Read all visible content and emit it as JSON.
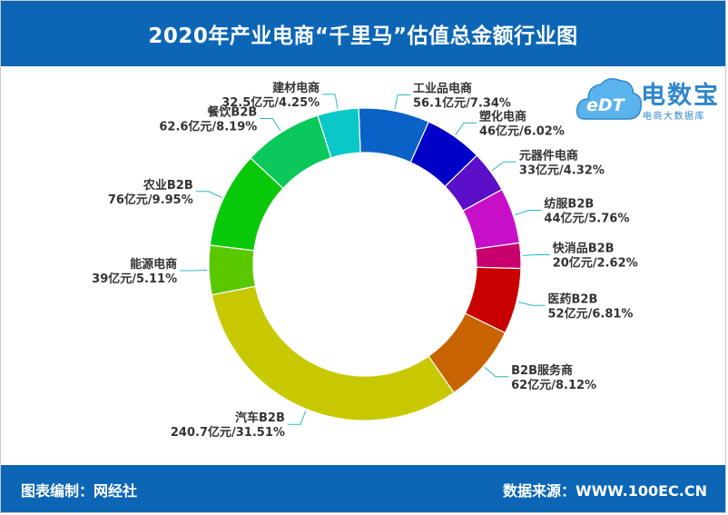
{
  "header": {
    "title": "2020年产业电商“千里马”估值总金额行业图"
  },
  "footer": {
    "credit": "图表编制：网经社",
    "source": "数据来源：WWW.100EC.CN"
  },
  "logo": {
    "mark": "eDT",
    "brand": "电数宝",
    "subtitle": "电商大数据库",
    "icon": "cloud-icon"
  },
  "colors": {
    "header_bg": "#0c66b5",
    "leader_line": "#28b8c8",
    "label_text": "#333333"
  },
  "chart_data": {
    "type": "pie",
    "variant": "donut",
    "title": "2020年产业电商“千里马”估值总金额行业图",
    "unit": "亿元",
    "slices": [
      {
        "name": "工业品电商",
        "value": 56.1,
        "percent": 7.34,
        "label": "56.1亿元/7.34%",
        "color": "#0a62c6"
      },
      {
        "name": "塑化电商",
        "value": 46,
        "percent": 6.02,
        "label": "46亿元/6.02%",
        "color": "#0000c6"
      },
      {
        "name": "元器件电商",
        "value": 33,
        "percent": 4.32,
        "label": "33亿元/4.32%",
        "color": "#5a0fc8"
      },
      {
        "name": "纺服B2B",
        "value": 44,
        "percent": 5.76,
        "label": "44亿元/5.76%",
        "color": "#c80fc8"
      },
      {
        "name": "快消品B2B",
        "value": 20,
        "percent": 2.62,
        "label": "20亿元/2.62%",
        "color": "#c8006e"
      },
      {
        "name": "医药B2B",
        "value": 52,
        "percent": 6.81,
        "label": "52亿元/6.81%",
        "color": "#c80000"
      },
      {
        "name": "B2B服务商",
        "value": 62,
        "percent": 8.12,
        "label": "62亿元/8.12%",
        "color": "#c86400"
      },
      {
        "name": "汽车B2B",
        "value": 240.7,
        "percent": 31.51,
        "label": "240.7亿元/31.51%",
        "color": "#c8c800"
      },
      {
        "name": "能源电商",
        "value": 39,
        "percent": 5.11,
        "label": "39亿元/5.11%",
        "color": "#5ac800"
      },
      {
        "name": "农业B2B",
        "value": 76,
        "percent": 9.95,
        "label": "76亿元/9.95%",
        "color": "#0ac80a"
      },
      {
        "name": "餐饮B2B",
        "value": 62.6,
        "percent": 8.19,
        "label": "62.6亿元/8.19%",
        "color": "#0ac85a"
      },
      {
        "name": "建材电商",
        "value": 32.5,
        "percent": 4.25,
        "label": "32.5亿元/4.25%",
        "color": "#0ac8c8"
      }
    ]
  }
}
